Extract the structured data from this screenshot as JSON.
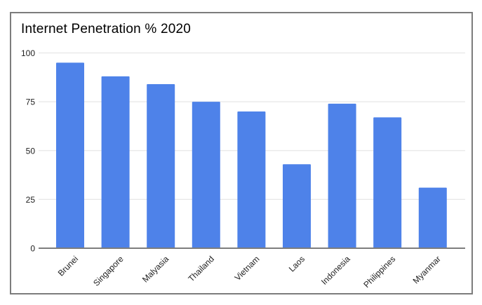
{
  "chart_data": {
    "type": "bar",
    "title": "Internet Penetration % 2020",
    "categories": [
      "Brunei",
      "Singapore",
      "Malyasia",
      "Thailand",
      "Vietnam",
      "Laos",
      "Indonesia",
      "Philippines",
      "Myanmar"
    ],
    "values": [
      95,
      88,
      84,
      75,
      70,
      43,
      74,
      67,
      31
    ],
    "xlabel": "",
    "ylabel": "",
    "ylim": [
      0,
      100
    ],
    "yticks": [
      0,
      25,
      50,
      75,
      100
    ],
    "grid": true,
    "legend": "none"
  },
  "colors": {
    "bar": "#4e82e9",
    "gridline": "#e7e7e7",
    "axis_line": "#7d7d7d",
    "tick_label": "#1f1f1f",
    "category_label": "#1f1f1f",
    "title": "#000000",
    "frame_border": "#7c7c7c",
    "background": "#ffffff"
  }
}
